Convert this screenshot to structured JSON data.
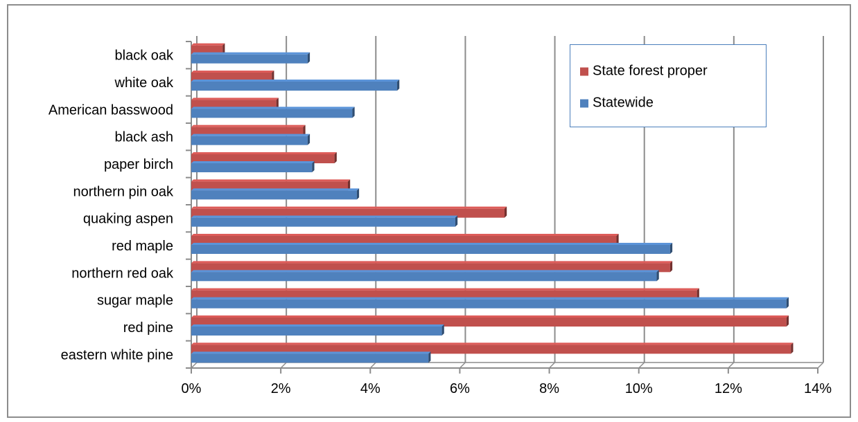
{
  "chart_data": {
    "type": "bar",
    "orientation": "horizontal",
    "categories": [
      "black oak",
      "white oak",
      "American basswood",
      "black ash",
      "paper birch",
      "northern pin oak",
      "quaking aspen",
      "red maple",
      "northern red oak",
      "sugar maple",
      "red pine",
      "eastern white pine"
    ],
    "series": [
      {
        "name": "State forest proper",
        "color": "#c0504d",
        "values": [
          0.7,
          1.8,
          1.9,
          2.5,
          3.2,
          3.5,
          7.0,
          9.5,
          10.7,
          11.3,
          13.3,
          13.4
        ]
      },
      {
        "name": "Statewide",
        "color": "#4f81bd",
        "values": [
          2.6,
          4.6,
          3.6,
          2.6,
          2.7,
          3.7,
          5.9,
          10.7,
          10.4,
          13.3,
          5.6,
          5.3
        ]
      }
    ],
    "x_ticks": [
      "0%",
      "2%",
      "4%",
      "6%",
      "8%",
      "10%",
      "12%",
      "14%"
    ],
    "xlim": [
      0,
      14
    ],
    "x_unit": "%",
    "grid": true,
    "legend_position": "top-right",
    "title": "",
    "xlabel": "",
    "ylabel": ""
  }
}
